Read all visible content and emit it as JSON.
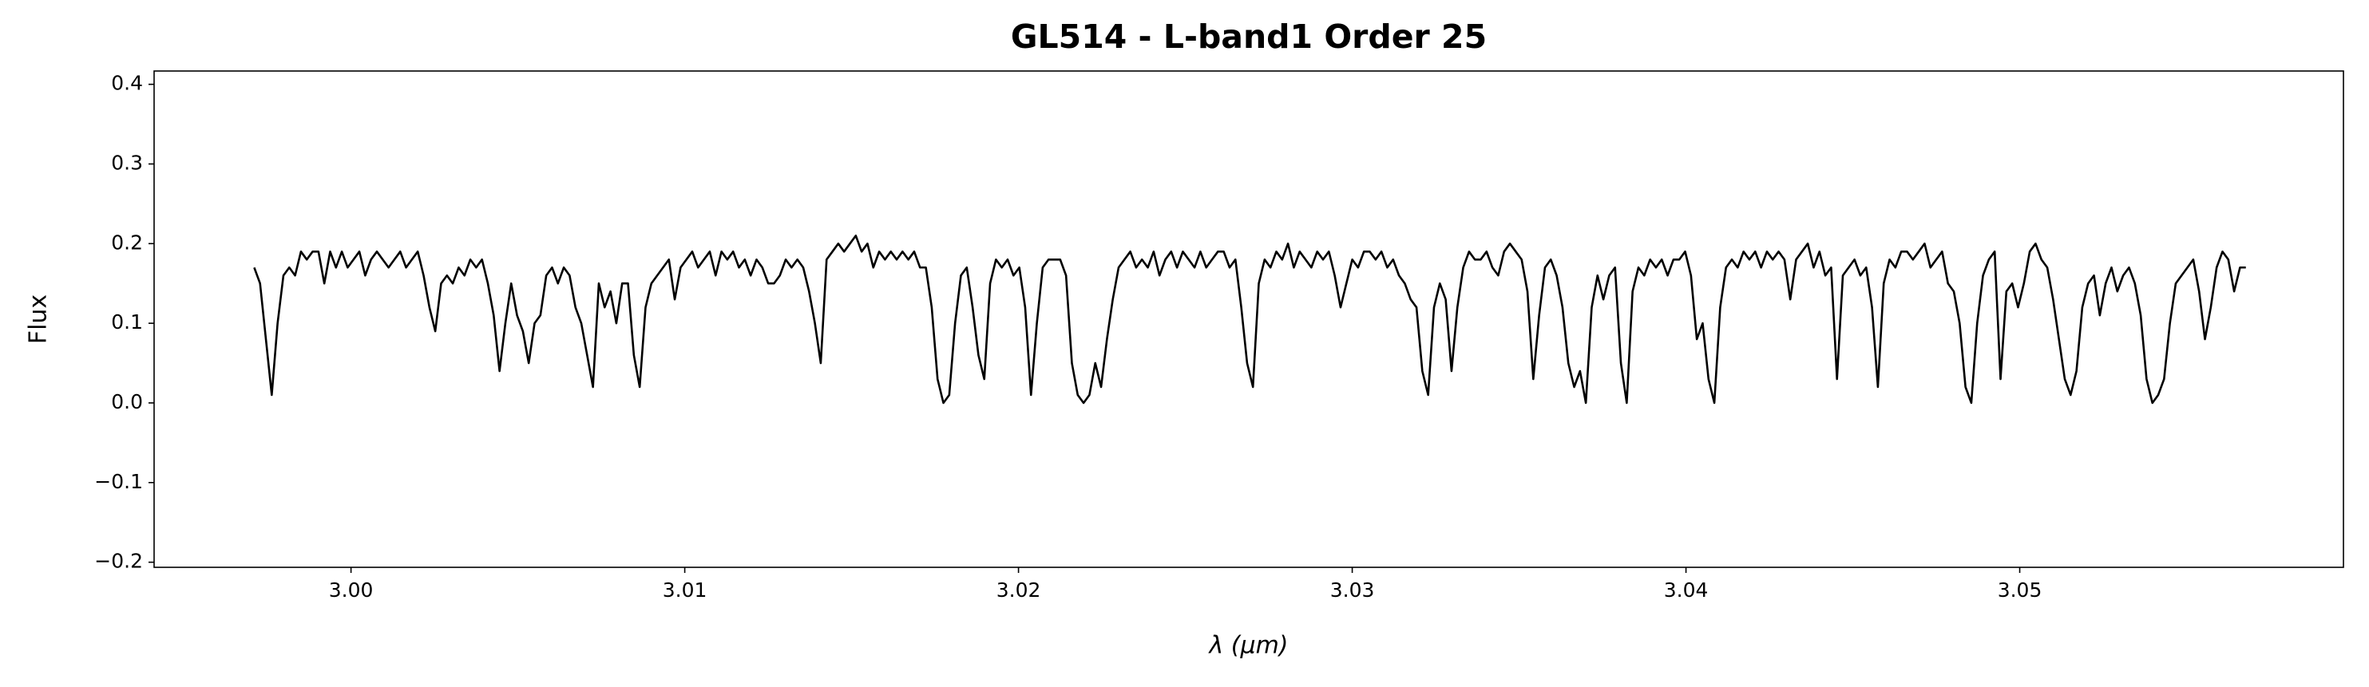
{
  "chart_data": {
    "type": "line",
    "title": "GL514 - L-band1 Order 25",
    "x_label": "λ (μm)",
    "y_label": "Flux",
    "color": "#000000",
    "xlim": [
      2.9941,
      3.0597
    ],
    "ylim": [
      -0.2064,
      0.4167
    ],
    "xticks": [
      {
        "value": 3.0,
        "label": "3.00"
      },
      3.01,
      3.02,
      3.03,
      3.04,
      3.05
    ],
    "yticks": [
      {
        "value": -0.2,
        "label": "−0.2"
      },
      {
        "value": -0.1,
        "label": "−0.1"
      },
      {
        "value": 0,
        "label": "0.0"
      },
      0.1,
      0.2,
      0.3,
      0.4
    ],
    "x": [
      2.9971,
      2.997275,
      2.99745,
      2.997625,
      2.9978,
      2.997975,
      2.99815,
      2.998325,
      2.9985,
      2.998675,
      2.99885,
      2.999025,
      2.9992,
      2.999375,
      2.99955,
      2.999725,
      2.9999,
      3.000075,
      3.00025,
      3.000425,
      3.0006,
      3.000775,
      3.00095,
      3.001125,
      3.0013,
      3.001475,
      3.00165,
      3.001825,
      3.002,
      3.002175,
      3.00235,
      3.002525,
      3.0027,
      3.002875,
      3.00305,
      3.003225,
      3.0034,
      3.003575,
      3.00375,
      3.003925,
      3.0041,
      3.004275,
      3.00445,
      3.004625,
      3.0048,
      3.004975,
      3.00515,
      3.005325,
      3.0055,
      3.005675,
      3.00585,
      3.006025,
      3.0062,
      3.006375,
      3.00655,
      3.006725,
      3.0069,
      3.007075,
      3.00725,
      3.007425,
      3.0076,
      3.007775,
      3.00795,
      3.008125,
      3.0083,
      3.008475,
      3.00865,
      3.008825,
      3.009,
      3.009175,
      3.00935,
      3.009525,
      3.0097,
      3.009875,
      3.01005,
      3.010225,
      3.0104,
      3.010575,
      3.01075,
      3.010925,
      3.0111,
      3.011275,
      3.01145,
      3.011625,
      3.0118,
      3.011975,
      3.01215,
      3.012325,
      3.0125,
      3.012675,
      3.01285,
      3.013025,
      3.0132,
      3.013375,
      3.01355,
      3.013725,
      3.0139,
      3.014075,
      3.01425,
      3.014425,
      3.0146,
      3.014775,
      3.01495,
      3.015125,
      3.0153,
      3.015475,
      3.01565,
      3.015825,
      3.016,
      3.016175,
      3.01635,
      3.016525,
      3.0167,
      3.016875,
      3.01705,
      3.017225,
      3.0174,
      3.017575,
      3.01775,
      3.017925,
      3.0181,
      3.018275,
      3.01845,
      3.018625,
      3.0188,
      3.018975,
      3.01915,
      3.019325,
      3.0195,
      3.019675,
      3.01985,
      3.020025,
      3.0202,
      3.020375,
      3.02055,
      3.020725,
      3.0209,
      3.021075,
      3.02125,
      3.021425,
      3.0216,
      3.021775,
      3.02195,
      3.022125,
      3.0223,
      3.022475,
      3.02265,
      3.022825,
      3.023,
      3.023175,
      3.02335,
      3.023525,
      3.0237,
      3.023875,
      3.02405,
      3.024225,
      3.0244,
      3.024575,
      3.02475,
      3.024925,
      3.0251,
      3.025275,
      3.02545,
      3.025625,
      3.0258,
      3.025975,
      3.02615,
      3.026325,
      3.0265,
      3.026675,
      3.02685,
      3.027025,
      3.0272,
      3.027375,
      3.02755,
      3.027725,
      3.0279,
      3.028075,
      3.02825,
      3.028425,
      3.0286,
      3.028775,
      3.02895,
      3.029125,
      3.0293,
      3.029475,
      3.02965,
      3.029825,
      3.03,
      3.030175,
      3.03035,
      3.030525,
      3.0307,
      3.030875,
      3.03105,
      3.031225,
      3.0314,
      3.031575,
      3.03175,
      3.031925,
      3.0321,
      3.032275,
      3.03245,
      3.032625,
      3.0328,
      3.032975,
      3.03315,
      3.033325,
      3.0335,
      3.033675,
      3.03385,
      3.034025,
      3.0342,
      3.034375,
      3.03455,
      3.034725,
      3.0349,
      3.035075,
      3.03525,
      3.035425,
      3.0356,
      3.035775,
      3.03595,
      3.036125,
      3.0363,
      3.036475,
      3.03665,
      3.036825,
      3.037,
      3.037175,
      3.03735,
      3.037525,
      3.0377,
      3.037875,
      3.03805,
      3.038225,
      3.0384,
      3.038575,
      3.03875,
      3.038925,
      3.0391,
      3.039275,
      3.03945,
      3.039625,
      3.0398,
      3.039975,
      3.04015,
      3.040325,
      3.0405,
      3.040675,
      3.04085,
      3.041025,
      3.0412,
      3.041375,
      3.04155,
      3.041725,
      3.0419,
      3.042075,
      3.04225,
      3.042425,
      3.0426,
      3.042775,
      3.04295,
      3.043125,
      3.0433,
      3.043475,
      3.04365,
      3.043825,
      3.044,
      3.044175,
      3.04435,
      3.044525,
      3.0447,
      3.044875,
      3.04505,
      3.045225,
      3.0454,
      3.045575,
      3.04575,
      3.045925,
      3.0461,
      3.046275,
      3.04645,
      3.046625,
      3.0468,
      3.046975,
      3.04715,
      3.047325,
      3.0475,
      3.047675,
      3.04785,
      3.048025,
      3.0482,
      3.048375,
      3.04855,
      3.048725,
      3.0489,
      3.049075,
      3.04925,
      3.049425,
      3.0496,
      3.049775,
      3.04995,
      3.050125,
      3.0503,
      3.050475,
      3.05065,
      3.050825,
      3.051,
      3.051175,
      3.05135,
      3.051525,
      3.0517,
      3.051875,
      3.05205,
      3.052225,
      3.0524,
      3.052575,
      3.05275,
      3.052925,
      3.0531,
      3.053275,
      3.05345,
      3.053625,
      3.0538,
      3.053975,
      3.05415,
      3.054325,
      3.0545,
      3.054675,
      3.05485,
      3.055025,
      3.0552,
      3.055375,
      3.05555,
      3.055725,
      3.0559,
      3.056075,
      3.05625,
      3.056425,
      3.0566,
      3.056775
    ],
    "values": [
      0.17,
      0.15,
      0.08,
      0.01,
      0.1,
      0.16,
      0.17,
      0.16,
      0.19,
      0.18,
      0.19,
      0.19,
      0.15,
      0.19,
      0.17,
      0.19,
      0.17,
      0.18,
      0.19,
      0.16,
      0.18,
      0.19,
      0.18,
      0.17,
      0.18,
      0.19,
      0.17,
      0.18,
      0.19,
      0.16,
      0.12,
      0.09,
      0.15,
      0.16,
      0.15,
      0.17,
      0.16,
      0.18,
      0.17,
      0.18,
      0.15,
      0.11,
      0.04,
      0.1,
      0.15,
      0.11,
      0.09,
      0.05,
      0.1,
      0.11,
      0.16,
      0.17,
      0.15,
      0.17,
      0.16,
      0.12,
      0.1,
      0.06,
      0.02,
      0.15,
      0.12,
      0.14,
      0.1,
      0.15,
      0.15,
      0.06,
      0.02,
      0.12,
      0.15,
      0.16,
      0.17,
      0.18,
      0.13,
      0.17,
      0.18,
      0.19,
      0.17,
      0.18,
      0.19,
      0.16,
      0.19,
      0.18,
      0.19,
      0.17,
      0.18,
      0.16,
      0.18,
      0.17,
      0.15,
      0.15,
      0.16,
      0.18,
      0.17,
      0.18,
      0.17,
      0.14,
      0.1,
      0.05,
      0.18,
      0.19,
      0.2,
      0.19,
      0.2,
      0.21,
      0.19,
      0.2,
      0.17,
      0.19,
      0.18,
      0.19,
      0.18,
      0.19,
      0.18,
      0.19,
      0.17,
      0.17,
      0.12,
      0.03,
      0.0,
      0.01,
      0.1,
      0.16,
      0.17,
      0.12,
      0.06,
      0.03,
      0.15,
      0.18,
      0.17,
      0.18,
      0.16,
      0.17,
      0.12,
      0.01,
      0.1,
      0.17,
      0.18,
      0.18,
      0.18,
      0.16,
      0.05,
      0.01,
      0.0,
      0.01,
      0.05,
      0.02,
      0.08,
      0.13,
      0.17,
      0.18,
      0.19,
      0.17,
      0.18,
      0.17,
      0.19,
      0.16,
      0.18,
      0.19,
      0.17,
      0.19,
      0.18,
      0.17,
      0.19,
      0.17,
      0.18,
      0.19,
      0.19,
      0.17,
      0.18,
      0.12,
      0.05,
      0.02,
      0.15,
      0.18,
      0.17,
      0.19,
      0.18,
      0.2,
      0.17,
      0.19,
      0.18,
      0.17,
      0.19,
      0.18,
      0.19,
      0.16,
      0.12,
      0.15,
      0.18,
      0.17,
      0.19,
      0.19,
      0.18,
      0.19,
      0.17,
      0.18,
      0.16,
      0.15,
      0.13,
      0.12,
      0.04,
      0.01,
      0.12,
      0.15,
      0.13,
      0.04,
      0.12,
      0.17,
      0.19,
      0.18,
      0.18,
      0.19,
      0.17,
      0.16,
      0.19,
      0.2,
      0.19,
      0.18,
      0.14,
      0.03,
      0.11,
      0.17,
      0.18,
      0.16,
      0.12,
      0.05,
      0.02,
      0.04,
      0.0,
      0.12,
      0.16,
      0.13,
      0.16,
      0.17,
      0.05,
      0.0,
      0.14,
      0.17,
      0.16,
      0.18,
      0.17,
      0.18,
      0.16,
      0.18,
      0.18,
      0.19,
      0.16,
      0.08,
      0.1,
      0.03,
      0.0,
      0.12,
      0.17,
      0.18,
      0.17,
      0.19,
      0.18,
      0.19,
      0.17,
      0.19,
      0.18,
      0.19,
      0.18,
      0.13,
      0.18,
      0.19,
      0.2,
      0.17,
      0.19,
      0.16,
      0.17,
      0.03,
      0.16,
      0.17,
      0.18,
      0.16,
      0.17,
      0.12,
      0.02,
      0.15,
      0.18,
      0.17,
      0.19,
      0.19,
      0.18,
      0.19,
      0.2,
      0.17,
      0.18,
      0.19,
      0.15,
      0.14,
      0.1,
      0.02,
      0.0,
      0.1,
      0.16,
      0.18,
      0.19,
      0.03,
      0.14,
      0.15,
      0.12,
      0.15,
      0.19,
      0.2,
      0.18,
      0.17,
      0.13,
      0.08,
      0.03,
      0.01,
      0.04,
      0.12,
      0.15,
      0.16,
      0.11,
      0.15,
      0.17,
      0.14,
      0.16,
      0.17,
      0.15,
      0.11,
      0.03,
      0.0,
      0.01,
      0.03,
      0.1,
      0.15,
      0.16,
      0.17,
      0.18,
      0.14,
      0.08,
      0.12,
      0.17,
      0.19,
      0.18,
      0.14,
      0.17,
      0.17
    ]
  }
}
